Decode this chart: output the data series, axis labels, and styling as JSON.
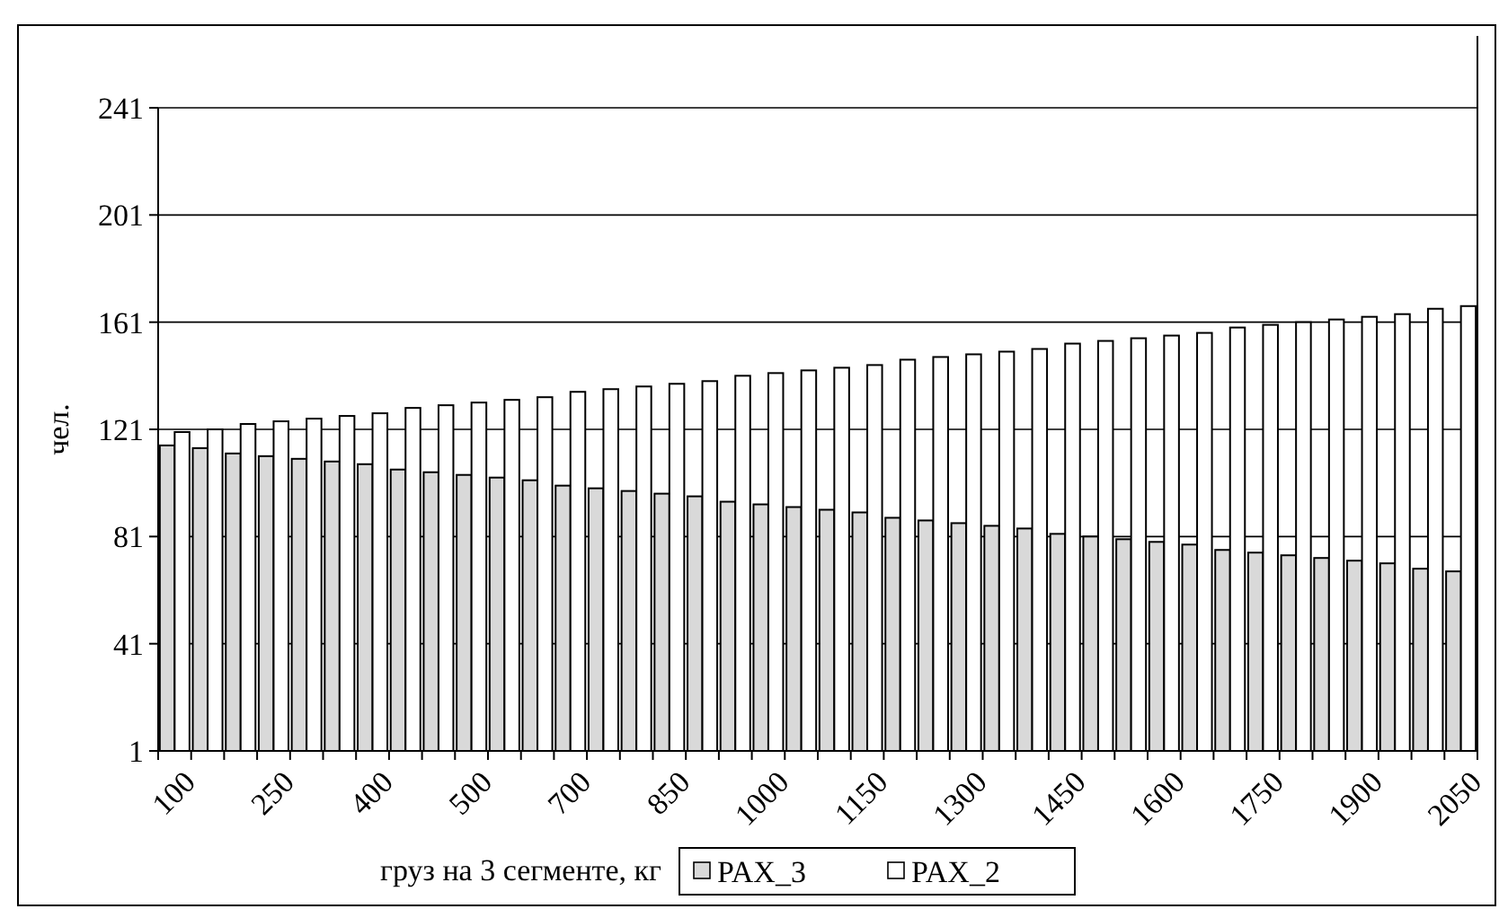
{
  "chart_data": {
    "type": "bar",
    "xlabel": "груз на 3 сегменте, кг",
    "ylabel": "чел.",
    "categories": [
      "100",
      null,
      null,
      "250",
      null,
      null,
      "400",
      null,
      null,
      "500",
      null,
      null,
      "700",
      null,
      null,
      "850",
      null,
      null,
      "1000",
      null,
      null,
      "1150",
      null,
      null,
      "1300",
      null,
      null,
      "1450",
      null,
      null,
      "1600",
      null,
      null,
      "1750",
      null,
      null,
      "1900",
      null,
      null,
      "2050"
    ],
    "series": [
      {
        "name": "PAX_3",
        "color": "#d9d9d9",
        "values": [
          115,
          114,
          112,
          111,
          110,
          109,
          108,
          106,
          105,
          104,
          103,
          102,
          100,
          99,
          98,
          97,
          96,
          94,
          93,
          92,
          91,
          90,
          88,
          87,
          86,
          85,
          84,
          82,
          81,
          80,
          79,
          78,
          76,
          75,
          74,
          73,
          72,
          71,
          69,
          68
        ]
      },
      {
        "name": "PAX_2",
        "color": "#ffffff",
        "values": [
          120,
          121,
          123,
          124,
          125,
          126,
          127,
          129,
          130,
          131,
          132,
          133,
          135,
          136,
          137,
          138,
          139,
          141,
          142,
          143,
          144,
          145,
          147,
          148,
          149,
          150,
          151,
          153,
          154,
          155,
          156,
          157,
          159,
          160,
          161,
          162,
          163,
          164,
          166,
          167
        ]
      }
    ],
    "ylim": [
      1,
      241
    ],
    "yticks": [
      1,
      41,
      81,
      121,
      161,
      201,
      241
    ],
    "grid": "y",
    "legend": "bottom"
  }
}
